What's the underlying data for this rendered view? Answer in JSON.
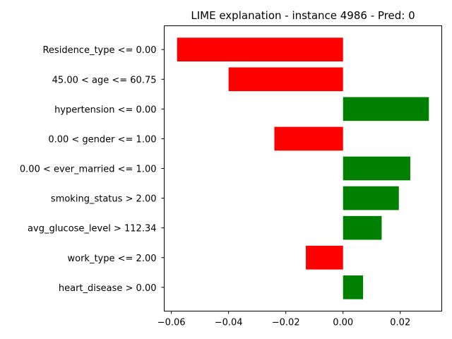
{
  "chart_data": {
    "type": "bar",
    "orientation": "horizontal",
    "title": "LIME explanation - instance 4986 - Pred: 0",
    "xlabel": "",
    "ylabel": "",
    "categories": [
      "Residence_type <= 0.00",
      "45.00 < age <= 60.75",
      "hypertension <= 0.00",
      "0.00 < gender <= 1.00",
      "0.00 < ever_married <= 1.00",
      "smoking_status > 2.00",
      "avg_glucose_level > 112.34",
      "work_type <= 2.00",
      "heart_disease > 0.00"
    ],
    "values": [
      -0.058,
      -0.04,
      0.03,
      -0.024,
      0.0235,
      0.0195,
      0.0135,
      -0.013,
      0.007
    ],
    "xlim": [
      -0.0625,
      0.0345
    ],
    "xticks": [
      -0.06,
      -0.04,
      -0.02,
      0.0,
      0.02
    ],
    "xtick_labels": [
      "−0.06",
      "−0.04",
      "−0.02",
      "0.00",
      "0.02"
    ],
    "grid": false,
    "colors": {
      "positive": "#008000",
      "negative": "#ff0000"
    }
  }
}
